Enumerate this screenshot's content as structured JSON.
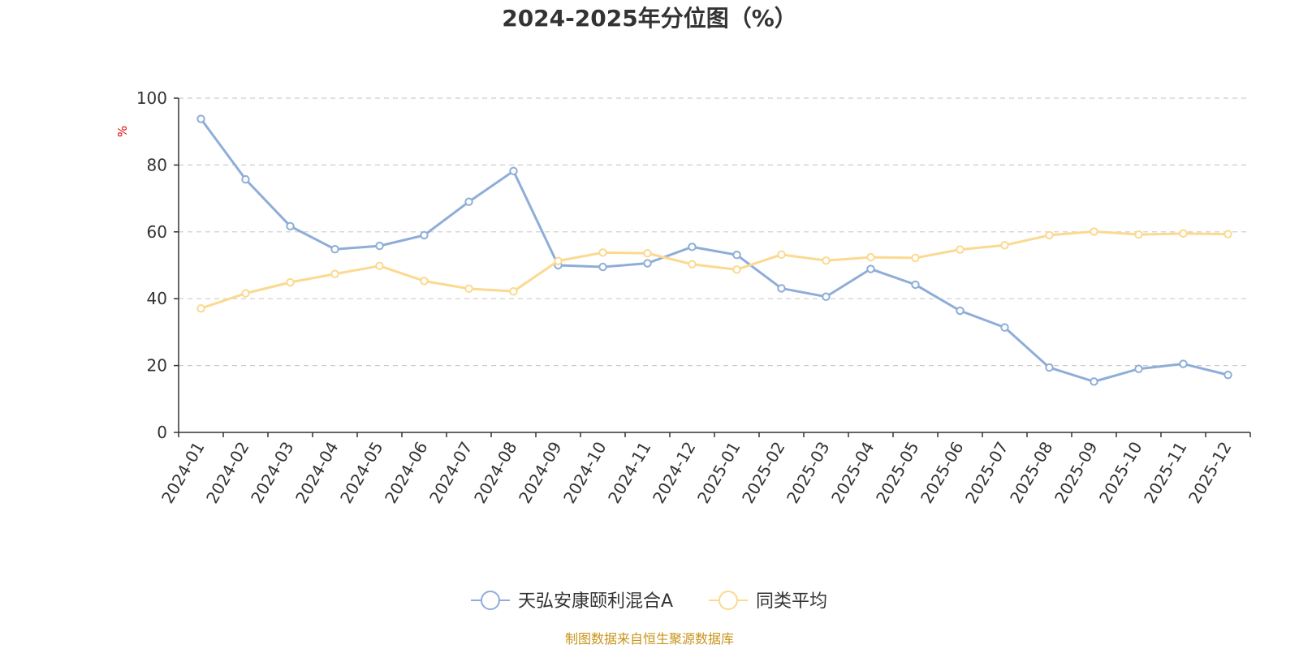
{
  "colors": {
    "series_1": "#8eadd8",
    "series_2": "#fbd98f",
    "axis": "#333333",
    "grid": "#cccccc",
    "unit": "#e00000",
    "source": "#c8941a"
  },
  "source_note": "制图数据来自恒生聚源数据库",
  "chart_data": {
    "type": "line",
    "title": "2024-2025年分位图（%）",
    "ylabel": "%",
    "xlabel": "",
    "ylim": [
      0,
      100
    ],
    "yticks": [
      0,
      20,
      40,
      60,
      80,
      100
    ],
    "grid": true,
    "legend_position": "bottom",
    "x": [
      "2024-01",
      "2024-02",
      "2024-03",
      "2024-04",
      "2024-05",
      "2024-06",
      "2024-07",
      "2024-08",
      "2024-09",
      "2024-10",
      "2024-11",
      "2024-12",
      "2025-01",
      "2025-02",
      "2025-03",
      "2025-04",
      "2025-05",
      "2025-06",
      "2025-07",
      "2025-08",
      "2025-09",
      "2025-10",
      "2025-11",
      "2025-12"
    ],
    "series": [
      {
        "name": "天弘安康颐利混合A",
        "values": [
          93.8,
          75.7,
          61.7,
          54.8,
          55.8,
          59.0,
          69.0,
          78.2,
          50.0,
          49.5,
          50.6,
          55.5,
          53.1,
          43.1,
          40.6,
          48.9,
          44.2,
          36.4,
          31.4,
          19.4,
          15.2,
          19.0,
          20.5,
          17.2
        ]
      },
      {
        "name": "同类平均",
        "values": [
          37.1,
          41.6,
          44.9,
          47.4,
          49.8,
          45.3,
          43.0,
          42.2,
          51.3,
          53.8,
          53.6,
          50.3,
          48.7,
          53.2,
          51.4,
          52.4,
          52.2,
          54.7,
          56.0,
          59.0,
          60.1,
          59.2,
          59.5,
          59.3
        ]
      }
    ]
  }
}
